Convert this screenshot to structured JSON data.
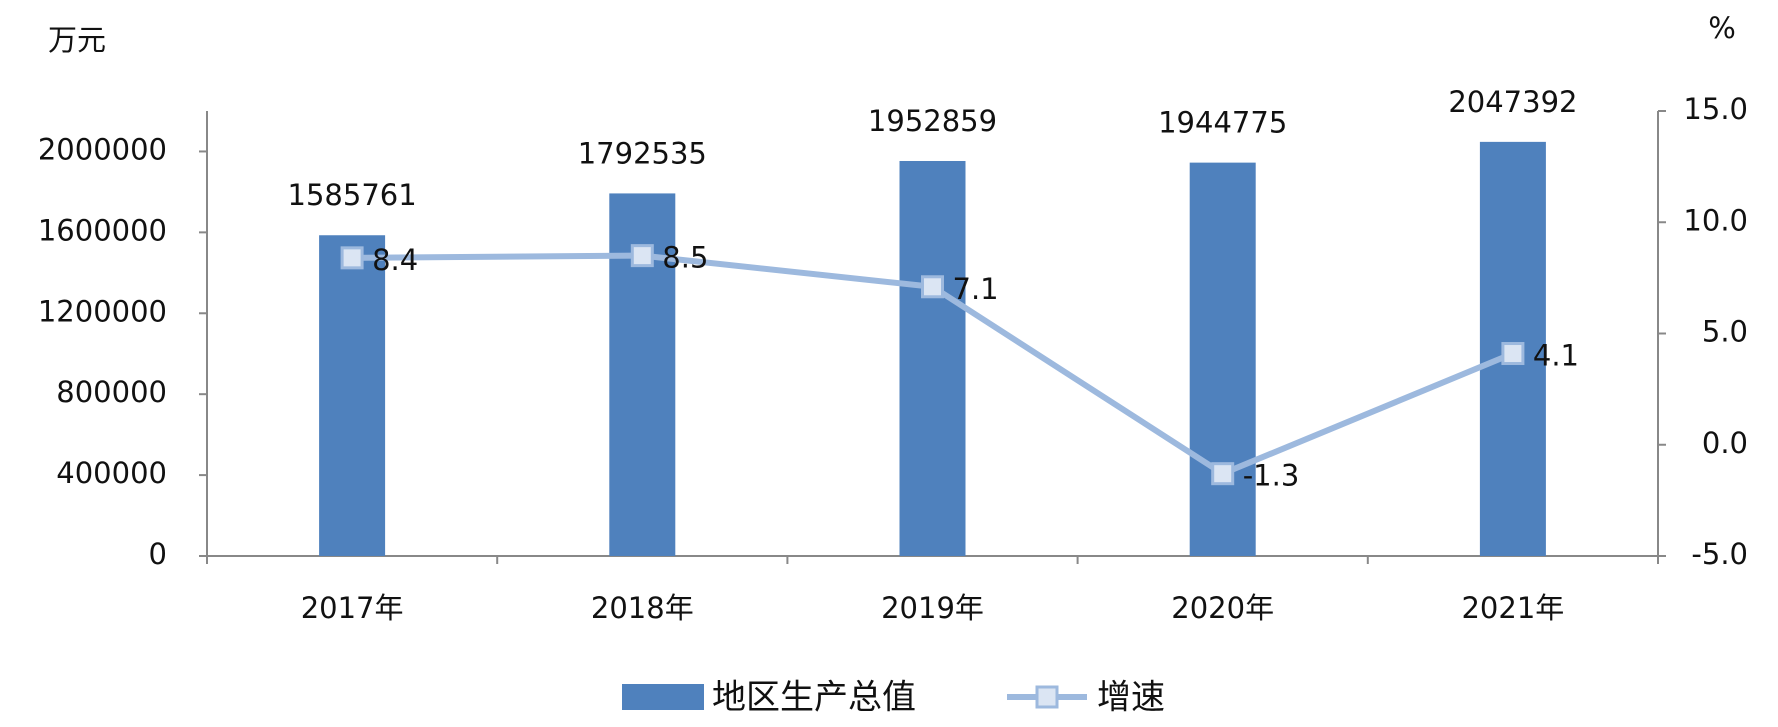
{
  "chart_data": {
    "type": "bar-line",
    "y_unit": "万元",
    "y2_unit": "%",
    "categories": [
      "2017年",
      "2018年",
      "2019年",
      "2020年",
      "2021年"
    ],
    "series": [
      {
        "name": "地区生产总值",
        "type": "bar",
        "color": "#4f81bd",
        "values": [
          1585761,
          1792535,
          1952859,
          1944775,
          2047392
        ]
      },
      {
        "name": "增速",
        "type": "line",
        "axis": "y2",
        "color": "#9db9de",
        "values": [
          8.4,
          8.5,
          7.1,
          -1.3,
          4.1
        ]
      }
    ],
    "ylim": [
      0,
      2200000
    ],
    "yticks": [
      0,
      400000,
      800000,
      1200000,
      1600000,
      2000000
    ],
    "y2lim": [
      -5,
      15
    ],
    "y2ticks": [
      {
        "value": -5,
        "label": "-5.0"
      },
      {
        "value": 0,
        "label": "0.0"
      },
      {
        "value": 5,
        "label": "5.0"
      },
      {
        "value": 10,
        "label": "10.0"
      },
      {
        "value": 15,
        "label": "15.0"
      }
    ],
    "legend": "bottom"
  }
}
